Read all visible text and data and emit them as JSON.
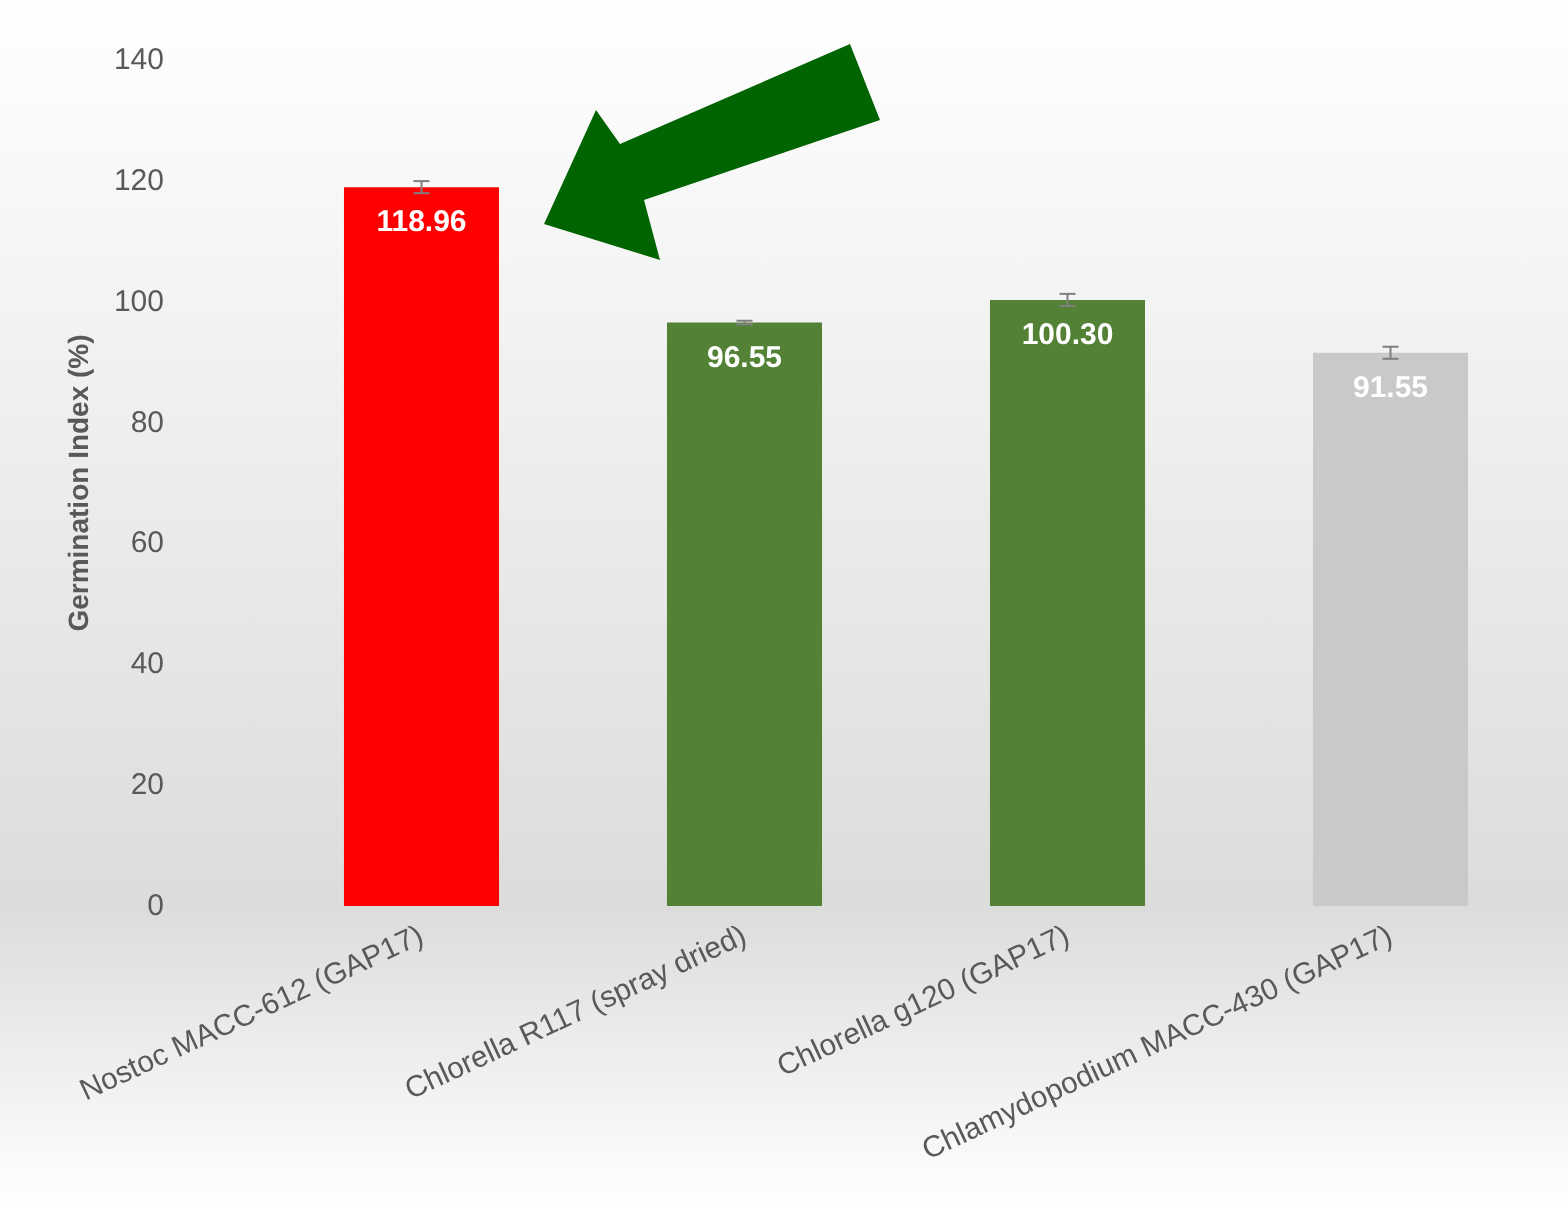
{
  "chart_data": {
    "type": "bar",
    "ylabel": "Germination Index (%)",
    "categories": [
      "Nostoc MACC-612 (GAP17)",
      "Chlorella R117 (spray dried)",
      "Chlorella g120 (GAP17)",
      "Chlamydopodium MACC-430 (GAP17)"
    ],
    "values": [
      118.96,
      96.55,
      100.3,
      91.55
    ],
    "colors": [
      "#ff0000",
      "#538135",
      "#538135",
      "#c9c9c9"
    ],
    "errors": [
      1,
      0.3,
      1,
      1
    ],
    "value_labels": [
      "118.96",
      "96.55",
      "100.30",
      "91.55"
    ],
    "ylim": [
      0,
      140
    ],
    "yticks": [
      0,
      20,
      40,
      60,
      80,
      100,
      120,
      140
    ],
    "grid": false
  }
}
